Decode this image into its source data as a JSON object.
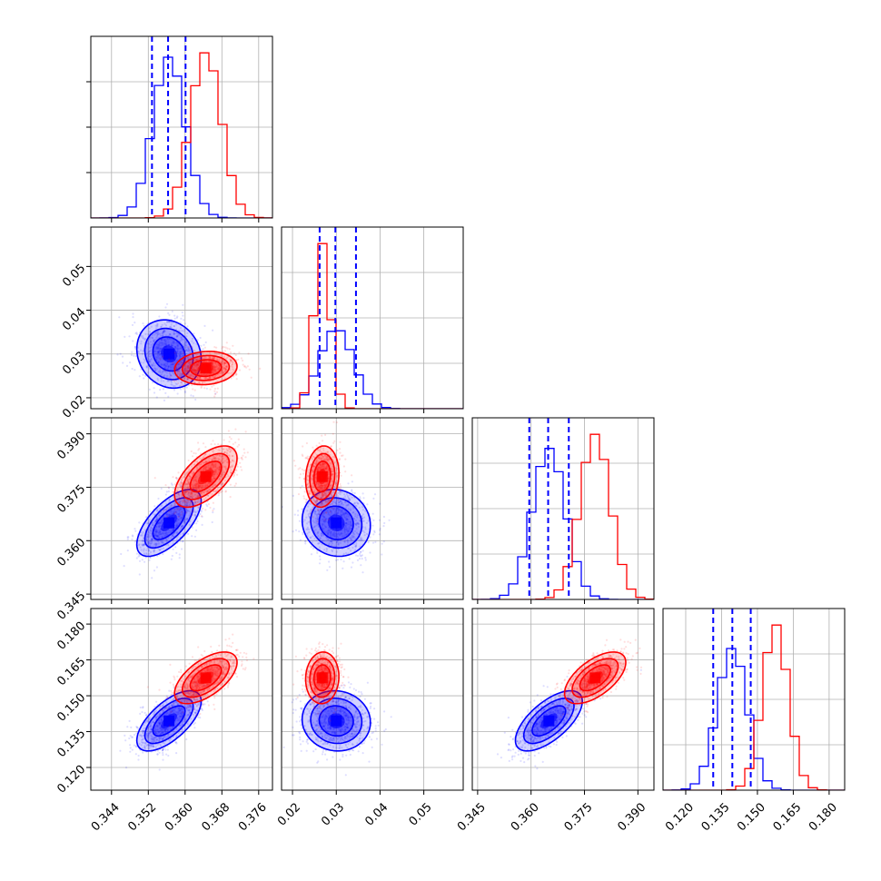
{
  "chart_data": {
    "type": "corner",
    "parameters": 4,
    "colors": {
      "blue": "#0000ff",
      "red": "#ff0000",
      "grid": "#b0b0b0"
    },
    "grid": true,
    "x_ticks": [
      [
        0.344,
        0.352,
        0.36,
        0.368,
        0.376
      ],
      [
        0.02,
        0.03,
        0.04,
        0.05
      ],
      [
        0.345,
        0.36,
        0.375,
        0.39
      ],
      [
        0.12,
        0.135,
        0.15,
        0.165,
        0.18
      ]
    ],
    "x_tick_labels": [
      [
        "0.344",
        "0.352",
        "0.360",
        "0.368",
        "0.376"
      ],
      [
        "0.02",
        "0.03",
        "0.04",
        "0.05"
      ],
      [
        "0.345",
        "0.360",
        "0.375",
        "0.390"
      ],
      [
        "0.120",
        "0.135",
        "0.150",
        "0.165",
        "0.180"
      ]
    ],
    "y_tick_labels": [
      [],
      [
        "0.02",
        "0.03",
        "0.04",
        "0.05"
      ],
      [
        "0.345",
        "0.360",
        "0.375",
        "0.390"
      ],
      [
        "0.120",
        "0.135",
        "0.150",
        "0.165",
        "0.180"
      ]
    ],
    "ranges": [
      [
        0.3395,
        0.379
      ],
      [
        0.0175,
        0.059
      ],
      [
        0.3435,
        0.3945
      ],
      [
        0.1105,
        0.1865
      ]
    ],
    "series": [
      {
        "color": "blue",
        "mean": [
          0.3565,
          0.03,
          0.365,
          0.1395
        ],
        "sigma": [
          0.0035,
          0.0039,
          0.0047,
          0.0063
        ],
        "corr": {
          "1-0": -0.15,
          "2-0": 0.65,
          "2-1": -0.08,
          "3-0": 0.65,
          "3-1": -0.05,
          "3-2": 0.65
        },
        "quantiles": [
          [
            0.3528,
            0.3563,
            0.3601
          ],
          [
            0.0262,
            0.0298,
            0.0345
          ],
          [
            0.3595,
            0.3648,
            0.3706
          ],
          [
            0.1315,
            0.1395,
            0.1472
          ]
        ]
      },
      {
        "color": "red",
        "mean": [
          0.3645,
          0.0268,
          0.378,
          0.1575
        ],
        "sigma": [
          0.0034,
          0.0019,
          0.0043,
          0.0054
        ],
        "corr": {
          "1-0": 0.1,
          "2-0": 0.6,
          "2-1": 0.1,
          "3-0": 0.6,
          "3-1": 0.05,
          "3-2": 0.6
        }
      }
    ]
  }
}
